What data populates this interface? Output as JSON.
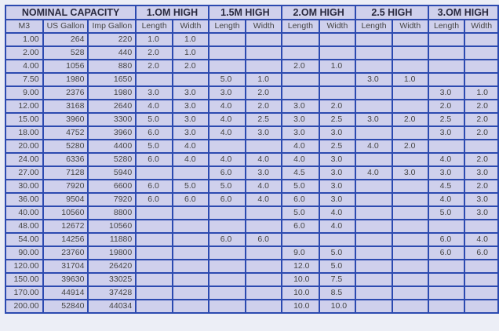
{
  "groups": [
    "NOMINAL CAPACITY",
    "1.OM HIGH",
    "1.5M HIGH",
    "2.OM HIGH",
    "2.5 HIGH",
    "3.OM HIGH"
  ],
  "subheaders": [
    "M3",
    "US Gallon",
    "Imp Gallon",
    "Length",
    "Width",
    "Length",
    "Width",
    "Length",
    "Width",
    "Length",
    "Width",
    "Length",
    "Width"
  ],
  "rows": [
    [
      "1.00",
      "264",
      "220",
      "1.0",
      "1.0",
      "",
      "",
      "",
      "",
      "",
      "",
      "",
      ""
    ],
    [
      "2.00",
      "528",
      "440",
      "2.0",
      "1.0",
      "",
      "",
      "",
      "",
      "",
      "",
      "",
      ""
    ],
    [
      "4.00",
      "1056",
      "880",
      "2.0",
      "2.0",
      "",
      "",
      "2.0",
      "1.0",
      "",
      "",
      "",
      ""
    ],
    [
      "7.50",
      "1980",
      "1650",
      "",
      "",
      "5.0",
      "1.0",
      "",
      "",
      "3.0",
      "1.0",
      "",
      ""
    ],
    [
      "9.00",
      "2376",
      "1980",
      "3.0",
      "3.0",
      "3.0",
      "2.0",
      "",
      "",
      "",
      "",
      "3.0",
      "1.0"
    ],
    [
      "12.00",
      "3168",
      "2640",
      "4.0",
      "3.0",
      "4.0",
      "2.0",
      "3.0",
      "2.0",
      "",
      "",
      "2.0",
      "2.0"
    ],
    [
      "15.00",
      "3960",
      "3300",
      "5.0",
      "3.0",
      "4.0",
      "2.5",
      "3.0",
      "2.5",
      "3.0",
      "2.0",
      "2.5",
      "2.0"
    ],
    [
      "18.00",
      "4752",
      "3960",
      "6.0",
      "3.0",
      "4.0",
      "3.0",
      "3.0",
      "3.0",
      "",
      "",
      "3.0",
      "2.0"
    ],
    [
      "20.00",
      "5280",
      "4400",
      "5.0",
      "4.0",
      "",
      "",
      "4.0",
      "2.5",
      "4.0",
      "2.0",
      "",
      ""
    ],
    [
      "24.00",
      "6336",
      "5280",
      "6.0",
      "4.0",
      "4.0",
      "4.0",
      "4.0",
      "3.0",
      "",
      "",
      "4.0",
      "2.0"
    ],
    [
      "27.00",
      "7128",
      "5940",
      "",
      "",
      "6.0",
      "3.0",
      "4.5",
      "3.0",
      "4.0",
      "3.0",
      "3.0",
      "3.0"
    ],
    [
      "30.00",
      "7920",
      "6600",
      "6.0",
      "5.0",
      "5.0",
      "4.0",
      "5.0",
      "3.0",
      "",
      "",
      "4.5",
      "2.0"
    ],
    [
      "36.00",
      "9504",
      "7920",
      "6.0",
      "6.0",
      "6.0",
      "4.0",
      "6.0",
      "3.0",
      "",
      "",
      "4.0",
      "3.0"
    ],
    [
      "40.00",
      "10560",
      "8800",
      "",
      "",
      "",
      "",
      "5.0",
      "4.0",
      "",
      "",
      "5.0",
      "3.0"
    ],
    [
      "48.00",
      "12672",
      "10560",
      "",
      "",
      "",
      "",
      "6.0",
      "4.0",
      "",
      "",
      "",
      ""
    ],
    [
      "54.00",
      "14256",
      "11880",
      "",
      "",
      "6.0",
      "6.0",
      "",
      "",
      "",
      "",
      "6.0",
      "4.0"
    ],
    [
      "90.00",
      "23760",
      "19800",
      "",
      "",
      "",
      "",
      "9.0",
      "5.0",
      "",
      "",
      "6.0",
      "6.0"
    ],
    [
      "120.00",
      "31704",
      "26420",
      "",
      "",
      "",
      "",
      "12.0",
      "5.0",
      "",
      "",
      "",
      ""
    ],
    [
      "150.00",
      "39630",
      "33025",
      "",
      "",
      "",
      "",
      "10.0",
      "7.5",
      "",
      "",
      "",
      ""
    ],
    [
      "170.00",
      "44914",
      "37428",
      "",
      "",
      "",
      "",
      "10.0",
      "8.5",
      "",
      "",
      "",
      ""
    ],
    [
      "200.00",
      "52840",
      "44034",
      "",
      "",
      "",
      "",
      "10.0",
      "10.0",
      "",
      "",
      "",
      ""
    ]
  ],
  "colors": {
    "background": "#cfd0ec",
    "grid": "#2c4ab0"
  }
}
